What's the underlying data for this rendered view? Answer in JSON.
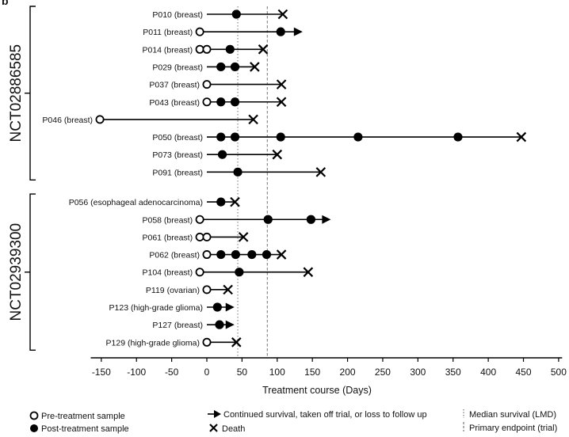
{
  "chart_data": {
    "type": "scatter",
    "panel_letter": "b",
    "xlabel": "Treatment course (Days)",
    "xlim": [
      -165,
      505
    ],
    "x_ticks": [
      -150,
      -100,
      -50,
      0,
      50,
      100,
      150,
      200,
      250,
      300,
      350,
      400,
      450,
      500
    ],
    "reference_lines": [
      {
        "x": 44,
        "style": "dotted",
        "label": "Median survival (LMD)"
      },
      {
        "x": 86,
        "style": "dashed",
        "label": "Primary endpoint (trial)"
      }
    ],
    "groups": [
      {
        "trial": "NCT02886585",
        "patients": [
          {
            "label": "P010 (breast)",
            "start": 0,
            "end": 108,
            "outcome": "death",
            "pre": [],
            "post": [
              42
            ]
          },
          {
            "label": "P011 (breast)",
            "start": -10,
            "end": 135,
            "outcome": "continued",
            "pre": [
              -10
            ],
            "post": [
              105
            ]
          },
          {
            "label": "P014 (breast)",
            "start": -10,
            "end": 80,
            "outcome": "death",
            "pre": [
              -10,
              0
            ],
            "post": [
              33
            ]
          },
          {
            "label": "P029 (breast)",
            "start": 0,
            "end": 68,
            "outcome": "death",
            "pre": [],
            "post": [
              20,
              40
            ]
          },
          {
            "label": "P037 (breast)",
            "start": 0,
            "end": 106,
            "outcome": "death",
            "pre": [
              0
            ],
            "post": []
          },
          {
            "label": "P043 (breast)",
            "start": 0,
            "end": 106,
            "outcome": "death",
            "pre": [
              0
            ],
            "post": [
              20,
              40
            ]
          },
          {
            "label": "P046 (breast)",
            "start": -152,
            "end": 66,
            "outcome": "death",
            "pre": [
              -152
            ],
            "post": []
          },
          {
            "label": "P050 (breast)",
            "start": 0,
            "end": 447,
            "outcome": "death",
            "pre": [],
            "post": [
              20,
              40,
              105,
              215,
              357
            ]
          },
          {
            "label": "P073 (breast)",
            "start": 0,
            "end": 100,
            "outcome": "death",
            "pre": [],
            "post": [
              22
            ]
          },
          {
            "label": "P091 (breast)",
            "start": 0,
            "end": 162,
            "outcome": "death",
            "pre": [],
            "post": [
              44
            ]
          }
        ]
      },
      {
        "trial": "NCT02939300",
        "patients": [
          {
            "label": "P056 (esophageal adenocarcinoma)",
            "start": 0,
            "end": 40,
            "outcome": "death",
            "pre": [],
            "post": [
              20
            ]
          },
          {
            "label": "P058 (breast)",
            "start": -10,
            "end": 175,
            "outcome": "continued",
            "pre": [
              -10
            ],
            "post": [
              87,
              148
            ]
          },
          {
            "label": "P061 (breast)",
            "start": -10,
            "end": 52,
            "outcome": "death",
            "pre": [
              -10,
              0
            ],
            "post": []
          },
          {
            "label": "P062 (breast)",
            "start": 0,
            "end": 106,
            "outcome": "death",
            "pre": [
              0
            ],
            "post": [
              20,
              41,
              64,
              85
            ]
          },
          {
            "label": "P104 (breast)",
            "start": -10,
            "end": 144,
            "outcome": "death",
            "pre": [
              -10
            ],
            "post": [
              46
            ]
          },
          {
            "label": "P119 (ovarian)",
            "start": 0,
            "end": 30,
            "outcome": "death",
            "pre": [
              0
            ],
            "post": []
          },
          {
            "label": "P123 (high-grade glioma)",
            "start": 0,
            "end": 38,
            "outcome": "continued",
            "pre": [],
            "post": [
              15
            ]
          },
          {
            "label": "P127 (breast)",
            "start": 0,
            "end": 38,
            "outcome": "continued",
            "pre": [],
            "post": [
              18
            ]
          },
          {
            "label": "P129 (high-grade glioma)",
            "start": 0,
            "end": 42,
            "outcome": "death",
            "pre": [
              0
            ],
            "post": []
          }
        ]
      }
    ],
    "legend": {
      "pre": "Pre-treatment sample",
      "post": "Post-treatment sample",
      "continued": "Continued survival, taken off trial, or loss to follow up",
      "death": "Death",
      "median": "Median survival (LMD)",
      "endpoint": "Primary endpoint (trial)"
    }
  }
}
